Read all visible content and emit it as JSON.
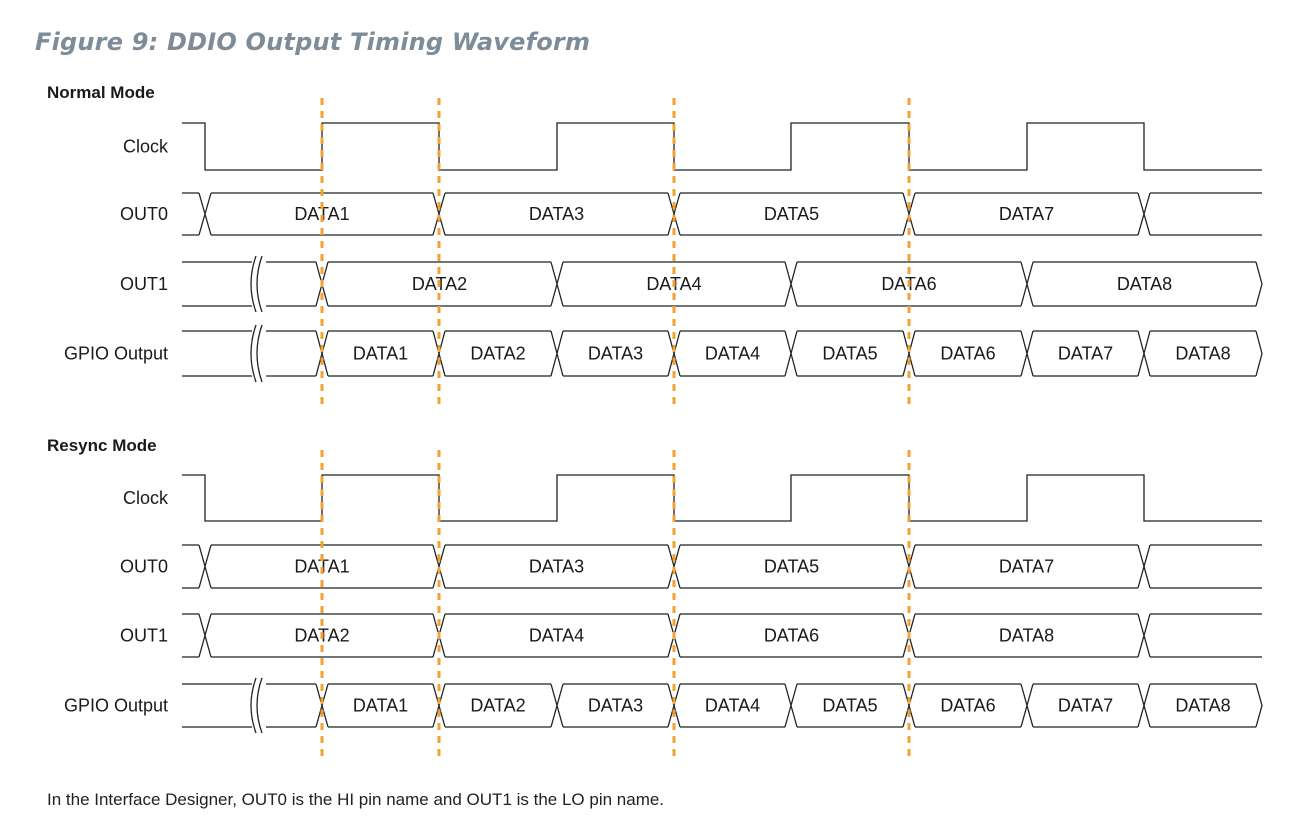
{
  "figure_title": "Figure 9: DDIO Output Timing Waveform",
  "footnote": "In the Interface Designer, OUT0 is the HI pin name and OUT1 is the LO pin name.",
  "colors": {
    "marker": "#f2a232",
    "title": "#7d8c98",
    "line": "#222222"
  },
  "modes": [
    {
      "title": "Normal Mode",
      "signals": [
        {
          "label": "Clock",
          "kind": "clock"
        },
        {
          "label": "OUT0",
          "kind": "bus",
          "segments": [
            "DATA1",
            "DATA3",
            "DATA5",
            "DATA7",
            ""
          ]
        },
        {
          "label": "OUT1",
          "kind": "bus",
          "break": true,
          "segments": [
            "DATA2",
            "DATA4",
            "DATA6",
            "DATA8"
          ]
        },
        {
          "label": "GPIO Output",
          "kind": "bus",
          "break": true,
          "segments": [
            "DATA1",
            "DATA2",
            "DATA3",
            "DATA4",
            "DATA5",
            "DATA6",
            "DATA7",
            "DATA8"
          ]
        }
      ]
    },
    {
      "title": "Resync Mode",
      "signals": [
        {
          "label": "Clock",
          "kind": "clock"
        },
        {
          "label": "OUT0",
          "kind": "bus",
          "segments": [
            "DATA1",
            "DATA3",
            "DATA5",
            "DATA7",
            ""
          ]
        },
        {
          "label": "OUT1",
          "kind": "bus",
          "segments": [
            "DATA2",
            "DATA4",
            "DATA6",
            "DATA8",
            ""
          ]
        },
        {
          "label": "GPIO Output",
          "kind": "bus",
          "break": true,
          "segments": [
            "DATA1",
            "DATA2",
            "DATA3",
            "DATA4",
            "DATA5",
            "DATA6",
            "DATA7",
            "DATA8"
          ]
        }
      ]
    }
  ]
}
